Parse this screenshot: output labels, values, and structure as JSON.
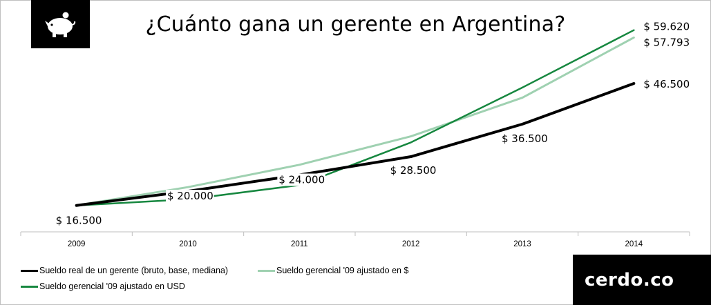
{
  "title": "¿Cuánto gana un gerente en Argentina?",
  "brand": "cerdo.co",
  "logo_icon": "piggy-bank-icon",
  "colors": {
    "real": "#000000",
    "ars": "#9fd1b1",
    "usd": "#16873f",
    "axis": "#bfbfbf"
  },
  "chart_data": {
    "type": "line",
    "title": "¿Cuánto gana un gerente en Argentina?",
    "categories": [
      "2009",
      "2010",
      "2011",
      "2012",
      "2013",
      "2014"
    ],
    "ylim": [
      10000,
      65000
    ],
    "grid": false,
    "legend_position": "bottom-left",
    "series": [
      {
        "key": "real",
        "name": "Sueldo real de un gerente (bruto, base, mediana)",
        "values": [
          16500,
          20000,
          24000,
          28500,
          36500,
          46500
        ],
        "labels": [
          "$ 16.500",
          "$ 20.000",
          "$ 24.000",
          "$ 28.500",
          "$ 36.500",
          "$ 46.500"
        ]
      },
      {
        "key": "ars",
        "name": "Sueldo gerencial '09 ajustado en $",
        "values": [
          16500,
          21000,
          26500,
          33500,
          43000,
          57793
        ],
        "labels": [
          "",
          "",
          "",
          "",
          "",
          "$ 57.793"
        ]
      },
      {
        "key": "usd",
        "name": "Sueldo gerencial '09 ajustado en USD",
        "values": [
          16500,
          18000,
          21500,
          32000,
          45500,
          59620
        ],
        "labels": [
          "",
          "",
          "",
          "",
          "",
          "$ 59.620"
        ]
      }
    ]
  }
}
